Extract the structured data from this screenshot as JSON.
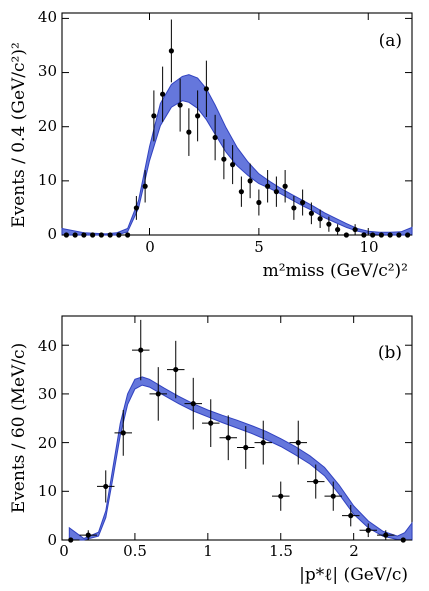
{
  "panels": [
    {
      "tag": "(a)",
      "ylabel": "Events / 0.4 (GeV/c²)²",
      "xlabel": "m²miss (GeV/c²)²",
      "xticks": [
        "0",
        "5",
        "10"
      ],
      "yticks": [
        "0",
        "10",
        "20",
        "30",
        "40"
      ]
    },
    {
      "tag": "(b)",
      "ylabel": "Events / 60 (MeV/c)",
      "xlabel": "|p*ℓ| (GeV/c)",
      "xticks": [
        "0",
        "0.5",
        "1",
        "1.5",
        "2"
      ],
      "yticks": [
        "0",
        "10",
        "20",
        "30",
        "40"
      ]
    }
  ],
  "chart_data": [
    {
      "type": "scatter",
      "title": "",
      "xlabel": "m²miss (GeV/c²)²",
      "ylabel": "Events / 0.4 (GeV/c²)²",
      "xlim": [
        -4,
        12
      ],
      "ylim": [
        0,
        41
      ],
      "xticks": [
        0,
        5,
        10
      ],
      "yticks": [
        0,
        10,
        20,
        30,
        40
      ],
      "grid": false,
      "series": [
        {
          "kind": "points-with-errorbars",
          "x": [
            -3.8,
            -3.4,
            -3.0,
            -2.6,
            -2.2,
            -1.8,
            -1.4,
            -1.0,
            -0.6,
            -0.2,
            0.2,
            0.6,
            1.0,
            1.4,
            1.8,
            2.2,
            2.6,
            3.0,
            3.4,
            3.8,
            4.2,
            4.6,
            5.0,
            5.4,
            5.8,
            6.2,
            6.6,
            7.0,
            7.4,
            7.8,
            8.2,
            8.6,
            9.0,
            9.4,
            9.8,
            10.2,
            10.6,
            11.0,
            11.4,
            11.8
          ],
          "y": [
            0,
            0,
            0,
            0,
            0,
            0,
            0,
            0,
            5,
            9,
            22,
            26,
            34,
            24,
            19,
            22,
            27,
            18,
            14,
            13,
            8,
            10,
            6,
            9,
            8,
            9,
            5,
            6,
            4,
            3,
            2,
            1,
            0,
            1,
            0,
            0,
            0,
            0,
            0,
            0
          ],
          "yerr": [
            0,
            0,
            0,
            0,
            0,
            0,
            0,
            0,
            2.2,
            3,
            4.7,
            5.1,
            5.8,
            4.9,
            4.4,
            4.7,
            5.2,
            4.2,
            3.7,
            3.6,
            2.8,
            3.2,
            2.4,
            3,
            2.8,
            3,
            2.2,
            2.4,
            2,
            1.7,
            1.4,
            1,
            0,
            1,
            0,
            0,
            0,
            0,
            0,
            0
          ]
        },
        {
          "kind": "fit-band",
          "x": [
            -4,
            -3,
            -2,
            -1.5,
            -1,
            -0.5,
            0,
            0.5,
            1,
            1.5,
            1.8,
            2.2,
            2.6,
            3,
            3.5,
            4,
            4.5,
            5,
            5.5,
            6,
            6.5,
            7,
            7.5,
            8,
            8.5,
            9,
            9.5,
            10,
            10.5,
            11,
            11.5,
            12
          ],
          "upper": [
            1.2,
            0.4,
            0.2,
            0.4,
            1.2,
            6.4,
            16.3,
            24.3,
            27.8,
            29.3,
            29.6,
            29,
            27,
            24,
            19.8,
            16.2,
            13.5,
            11.3,
            9.9,
            8.6,
            7.5,
            6.4,
            5.3,
            4.1,
            3.1,
            2.1,
            1.2,
            0.7,
            0.5,
            0.5,
            0.6,
            1.4
          ],
          "lower": [
            0,
            0,
            0,
            0,
            0.6,
            5,
            13.7,
            20.2,
            23.6,
            24.8,
            24.5,
            23.4,
            21.3,
            18.6,
            15.3,
            12.8,
            11,
            9.5,
            8.6,
            7.6,
            6.5,
            5.4,
            4.4,
            3.2,
            2.3,
            1.4,
            0.7,
            0.3,
            0.1,
            0,
            0,
            0
          ]
        }
      ]
    },
    {
      "type": "scatter",
      "title": "",
      "xlabel": "|p*ℓ| (GeV/c)",
      "ylabel": "Events / 60 (MeV/c)",
      "xlim": [
        0,
        2.4
      ],
      "ylim": [
        0,
        46
      ],
      "xticks": [
        0,
        0.5,
        1,
        1.5,
        2
      ],
      "yticks": [
        0,
        10,
        20,
        30,
        40
      ],
      "grid": false,
      "series": [
        {
          "kind": "points-with-errorbars",
          "x": [
            0.06,
            0.18,
            0.3,
            0.42,
            0.54,
            0.66,
            0.78,
            0.9,
            1.02,
            1.14,
            1.26,
            1.38,
            1.5,
            1.62,
            1.74,
            1.86,
            1.98,
            2.1,
            2.22,
            2.34
          ],
          "y": [
            0,
            1,
            11,
            22,
            39,
            30,
            35,
            28,
            24,
            21,
            19,
            20,
            9,
            20,
            12,
            9,
            5,
            2,
            1,
            0
          ],
          "yerr": [
            0,
            1,
            3.3,
            4.7,
            6.2,
            5.5,
            5.9,
            5.3,
            4.9,
            4.6,
            4.4,
            4.5,
            3,
            4.5,
            3.5,
            3,
            2.2,
            1.4,
            1,
            0
          ],
          "xerr": 0.06
        },
        {
          "kind": "fit-band",
          "x": [
            0.05,
            0.15,
            0.25,
            0.3,
            0.35,
            0.4,
            0.45,
            0.5,
            0.55,
            0.6,
            0.7,
            0.8,
            0.9,
            1.0,
            1.1,
            1.2,
            1.3,
            1.4,
            1.5,
            1.6,
            1.7,
            1.8,
            1.9,
            2.0,
            2.1,
            2.2,
            2.3,
            2.35,
            2.4
          ],
          "upper": [
            2.5,
            0.3,
            1.6,
            6,
            15,
            24,
            30,
            33,
            33.5,
            33,
            31.2,
            29.5,
            28,
            26.7,
            25.6,
            24.6,
            23.5,
            22.3,
            20.8,
            19.2,
            17.3,
            14.9,
            11.3,
            7,
            3.9,
            1.8,
            0.8,
            1.5,
            3.5
          ],
          "lower": [
            0,
            0,
            0.8,
            4.6,
            12.8,
            21.5,
            27.8,
            31,
            31.8,
            31.4,
            29.7,
            28,
            26.5,
            25.3,
            24.1,
            23,
            21.9,
            20.6,
            19.2,
            17.5,
            15.6,
            13.2,
            9.4,
            5.3,
            2.5,
            0.8,
            0.1,
            0,
            0
          ]
        }
      ]
    }
  ]
}
